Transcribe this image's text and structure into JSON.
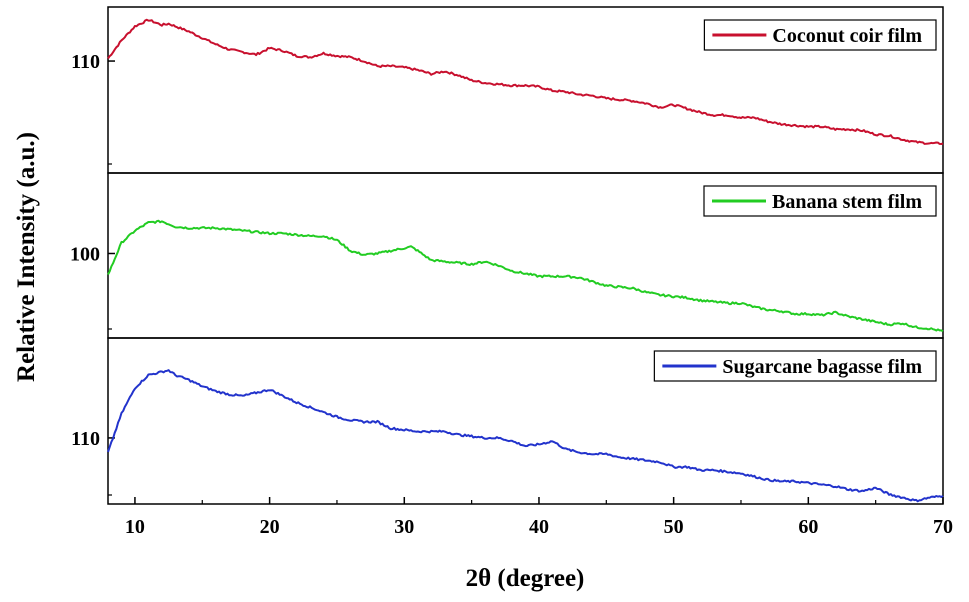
{
  "chart_data": {
    "type": "line",
    "xlabel": "2θ (degree)",
    "ylabel": "Relative Intensity (a.u.)",
    "xlim": [
      8,
      70
    ],
    "x_ticks": [
      10,
      20,
      30,
      40,
      50,
      60,
      70
    ],
    "grid": false,
    "panels": [
      {
        "legend": "Coconut coir film",
        "color": "#c8102e",
        "ylim": [
          101.3,
          114.2
        ],
        "y_ticks": [
          110
        ],
        "legend_position": "top-right",
        "series": [
          {
            "name": "Coconut coir film",
            "x": [
              8,
              9,
              10,
              11,
              11.5,
              12,
              12.5,
              13,
              14,
              15,
              16,
              17,
              18,
              19,
              20,
              21,
              22,
              23,
              24,
              25,
              26,
              27,
              28,
              29,
              30,
              31,
              32,
              33,
              34,
              35,
              36,
              37,
              38,
              39,
              40,
              41,
              42,
              43,
              44,
              45,
              46,
              47,
              48,
              49,
              50,
              51,
              52,
              53,
              54,
              55,
              56,
              57,
              58,
              59,
              60,
              61,
              62,
              63,
              64,
              65,
              66,
              67,
              68,
              69,
              70
            ],
            "y": [
              110.2,
              111.6,
              112.7,
              113.2,
              113.0,
              112.8,
              112.9,
              112.7,
              112.3,
              111.8,
              111.3,
              110.9,
              110.7,
              110.5,
              111.0,
              110.8,
              110.4,
              110.3,
              110.6,
              110.4,
              110.3,
              110.0,
              109.6,
              109.6,
              109.5,
              109.3,
              109.0,
              109.2,
              108.9,
              108.5,
              108.3,
              108.2,
              108.1,
              108.1,
              108.0,
              107.7,
              107.6,
              107.4,
              107.3,
              107.1,
              107.0,
              106.9,
              106.7,
              106.4,
              106.6,
              106.3,
              106.0,
              105.8,
              105.8,
              105.6,
              105.6,
              105.3,
              105.1,
              105.0,
              104.9,
              104.9,
              104.7,
              104.7,
              104.6,
              104.3,
              104.2,
              103.9,
              103.7,
              103.6,
              103.6
            ]
          }
        ]
      },
      {
        "legend": "Banana stem film",
        "color": "#22cc22",
        "ylim": [
          93.7,
          106.0
        ],
        "y_ticks": [
          100
        ],
        "legend_position": "top-right",
        "series": [
          {
            "name": "Banana stem film",
            "x": [
              8,
              9,
              10,
              11,
              12,
              13,
              14,
              15,
              16,
              17,
              18,
              19,
              20,
              21,
              22,
              23,
              24,
              25,
              26,
              27,
              28,
              29,
              30,
              30.5,
              31,
              32,
              33,
              34,
              35,
              36,
              37,
              38,
              39,
              40,
              41,
              42,
              43,
              44,
              45,
              46,
              47,
              48,
              49,
              50,
              51,
              52,
              53,
              54,
              55,
              56,
              57,
              58,
              59,
              60,
              61,
              62,
              63,
              64,
              65,
              66,
              67,
              68,
              69,
              70
            ],
            "y": [
              98.4,
              100.8,
              101.7,
              102.3,
              102.4,
              102.0,
              101.9,
              101.9,
              101.9,
              101.8,
              101.7,
              101.6,
              101.5,
              101.5,
              101.4,
              101.3,
              101.3,
              101.0,
              100.2,
              99.9,
              100.0,
              100.2,
              100.4,
              100.5,
              100.2,
              99.5,
              99.4,
              99.3,
              99.2,
              99.4,
              99.1,
              98.7,
              98.5,
              98.3,
              98.3,
              98.3,
              98.2,
              97.9,
              97.6,
              97.5,
              97.4,
              97.1,
              96.9,
              96.8,
              96.7,
              96.5,
              96.4,
              96.3,
              96.3,
              96.0,
              95.8,
              95.7,
              95.5,
              95.5,
              95.4,
              95.6,
              95.3,
              95.1,
              94.9,
              94.7,
              94.8,
              94.5,
              94.4,
              94.2
            ]
          }
        ]
      },
      {
        "legend": "Sugarcane bagasse film",
        "color": "#2233cc",
        "ylim": [
          105.9,
          116.2
        ],
        "y_ticks": [
          110
        ],
        "legend_position": "top-right",
        "series": [
          {
            "name": "Sugarcane bagasse film",
            "x": [
              8,
              9,
              10,
              11,
              12,
              12.5,
              13,
              14,
              15,
              16,
              17,
              18,
              19,
              20,
              21,
              22,
              23,
              24,
              25,
              26,
              27,
              28,
              29,
              30,
              31,
              32,
              33,
              34,
              35,
              36,
              37,
              38,
              39,
              40,
              41,
              42,
              43,
              44,
              45,
              46,
              47,
              48,
              49,
              50,
              51,
              52,
              53,
              54,
              55,
              56,
              57,
              58,
              59,
              60,
              61,
              62,
              63,
              64,
              65,
              66,
              67,
              68,
              69,
              70
            ],
            "y": [
              109.1,
              111.5,
              113.1,
              113.9,
              114.1,
              114.2,
              113.9,
              113.6,
              113.2,
              112.9,
              112.7,
              112.6,
              112.8,
              113.0,
              112.6,
              112.2,
              111.9,
              111.6,
              111.3,
              111.1,
              111.0,
              111.0,
              110.6,
              110.5,
              110.4,
              110.4,
              110.4,
              110.2,
              110.1,
              110.0,
              110.0,
              109.8,
              109.5,
              109.6,
              109.8,
              109.3,
              109.1,
              109.0,
              109.0,
              108.8,
              108.7,
              108.6,
              108.5,
              108.2,
              108.2,
              108.0,
              108.0,
              107.9,
              107.8,
              107.6,
              107.4,
              107.3,
              107.3,
              107.2,
              107.1,
              107.0,
              106.8,
              106.7,
              106.9,
              106.5,
              106.3,
              106.1,
              106.3,
              106.4
            ]
          }
        ]
      }
    ]
  }
}
